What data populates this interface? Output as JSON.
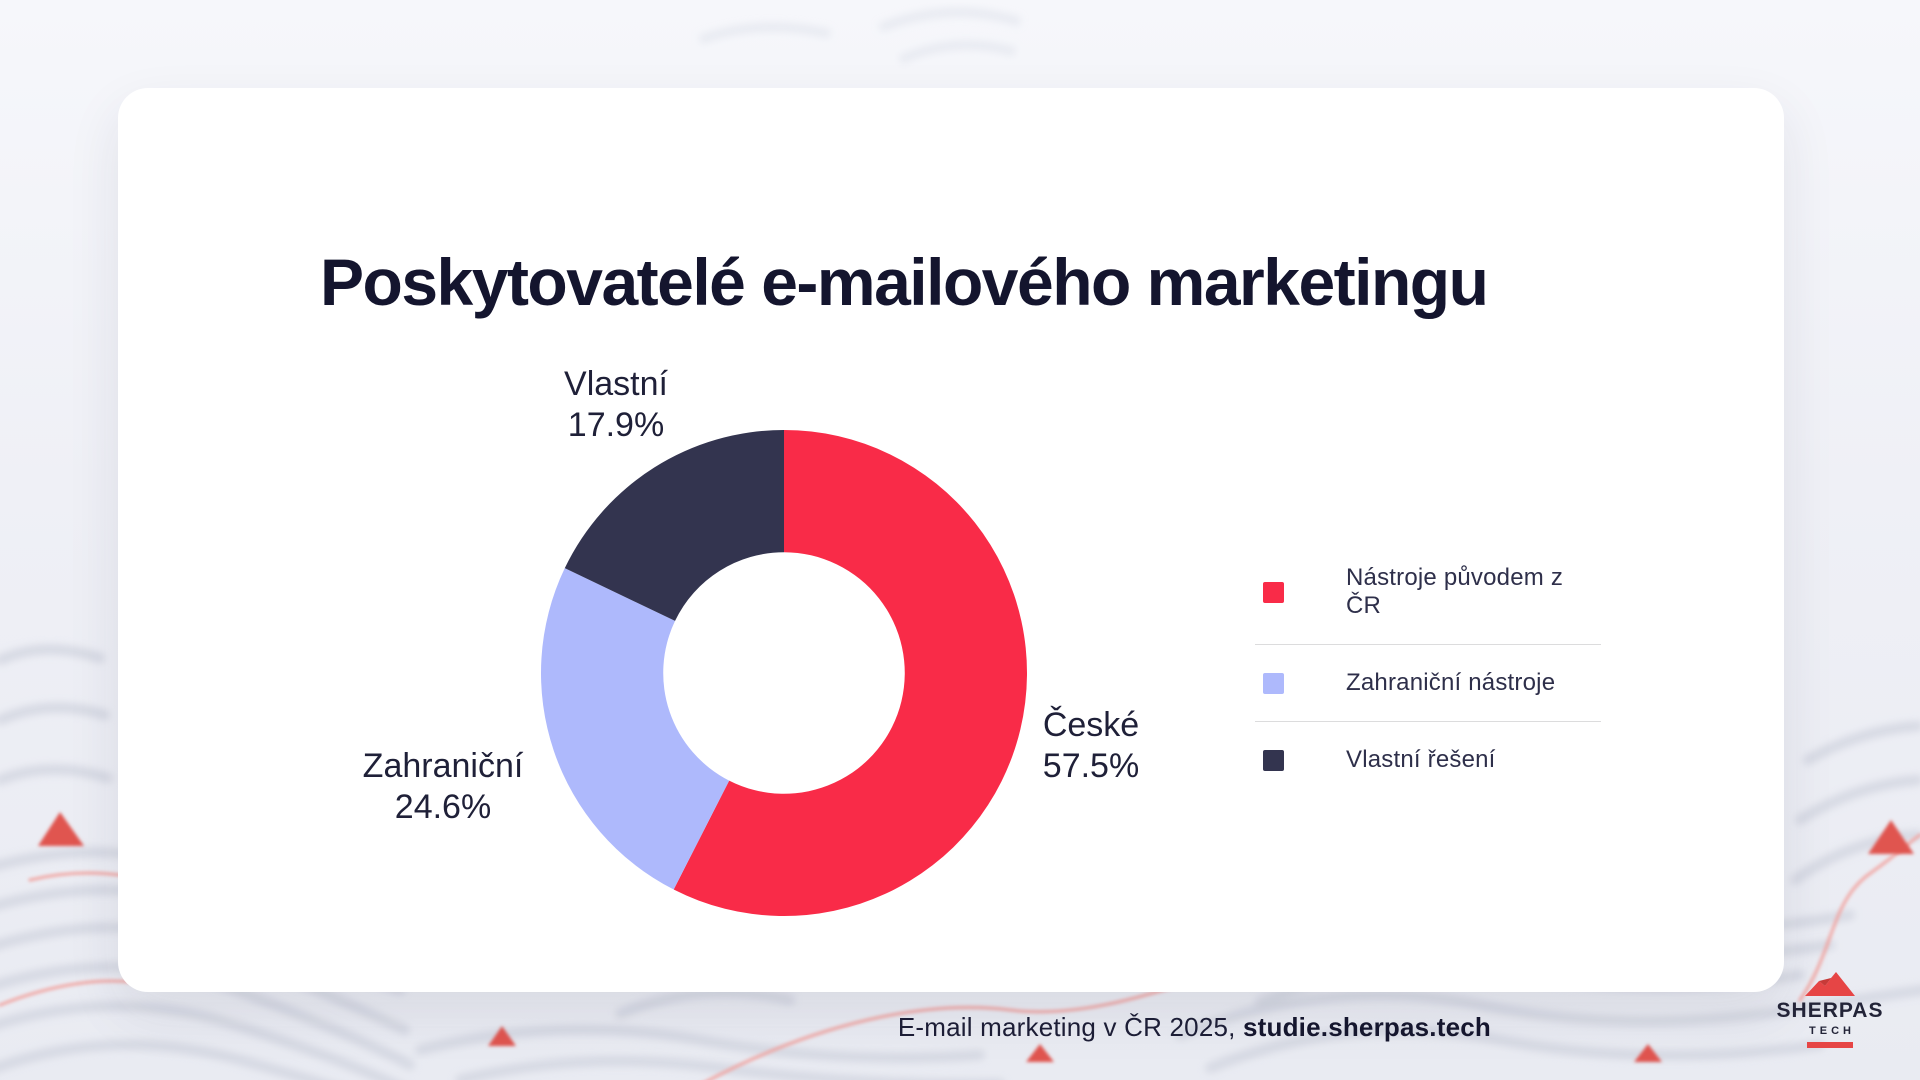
{
  "title": "Poskytovatelé e-mailového marketingu",
  "chart_data": {
    "type": "pie",
    "subtype": "donut",
    "title": "Poskytovatelé e-mailového marketingu",
    "categories": [
      "České",
      "Zahraniční",
      "Vlastní"
    ],
    "values": [
      57.5,
      24.6,
      17.9
    ],
    "unit": "%",
    "colors": [
      "#f92b48",
      "#aeb9fc",
      "#33344f"
    ],
    "start_angle_deg": 0,
    "direction": "clockwise",
    "inner_radius_ratio": 0.497,
    "legend_position": "right",
    "labels": [
      {
        "category": "České",
        "value_text": "57.5%"
      },
      {
        "category": "Zahraniční",
        "value_text": "24.6%"
      },
      {
        "category": "Vlastní",
        "value_text": "17.9%"
      }
    ]
  },
  "legend": {
    "items": [
      {
        "label": "Nástroje původem z ČR",
        "color": "#f92b48"
      },
      {
        "label": "Zahraniční nástroje",
        "color": "#aeb9fc"
      },
      {
        "label": "Vlastní řešení",
        "color": "#33344f"
      }
    ]
  },
  "footer": {
    "source_prefix": "E-mail marketing v ČR 2025, ",
    "source_link": "studie.sherpas.tech"
  },
  "logo": {
    "name": "SHERPAS",
    "sub": "TECH",
    "accent_color": "#e64545"
  }
}
